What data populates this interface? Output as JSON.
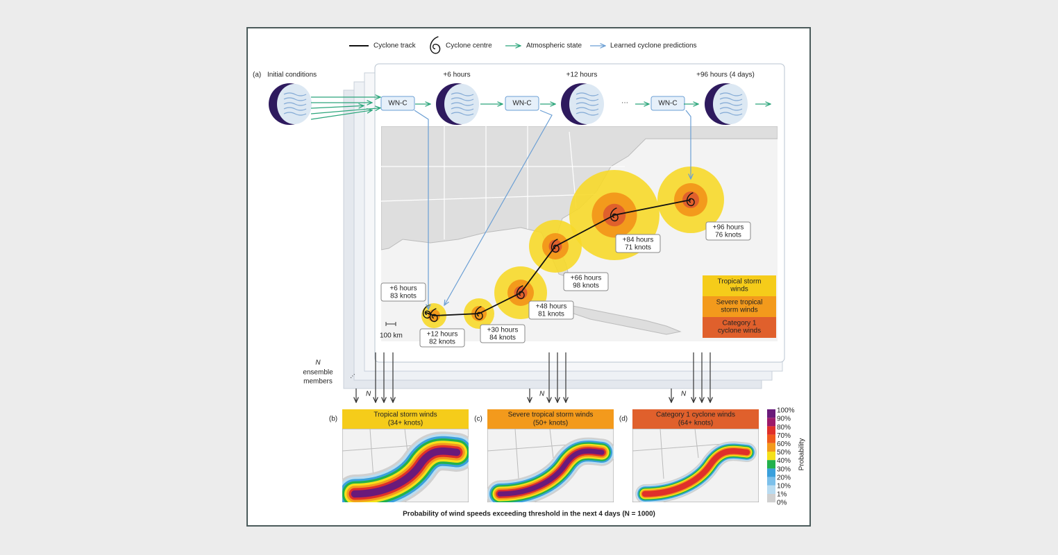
{
  "legend": {
    "track": "Cyclone track",
    "centre": "Cyclone centre",
    "state": "Atmospheric state",
    "predictions": "Learned cyclone predictions"
  },
  "panel_a": {
    "label": "(a)",
    "initial": "Initial conditions",
    "steps": [
      "+6 hours",
      "+12 hours",
      "+96 hours (4 days)"
    ],
    "models": [
      "WN-C",
      "WN-C",
      "WN-C"
    ],
    "ellipsis": "···",
    "track_labels": [
      {
        "time": "+6 hours",
        "speed": "83 knots"
      },
      {
        "time": "+12 hours",
        "speed": "82 knots"
      },
      {
        "time": "+30 hours",
        "speed": "84 knots"
      },
      {
        "time": "+48 hours",
        "speed": "81 knots"
      },
      {
        "time": "+66 hours",
        "speed": "98 knots"
      },
      {
        "time": "+84 hours",
        "speed": "71 knots"
      },
      {
        "time": "+96 hours",
        "speed": "76 knots"
      }
    ],
    "scale": "100 km",
    "wind_legend": [
      [
        "Tropical storm",
        "winds"
      ],
      [
        "Severe tropical",
        "storm winds"
      ],
      [
        "Category 1",
        "cyclone winds"
      ]
    ],
    "ensemble": [
      "N",
      "ensemble",
      "members"
    ],
    "n_marks": [
      "N",
      "N",
      "N"
    ]
  },
  "panels": [
    {
      "label": "(b)",
      "title": "Tropical storm winds",
      "threshold": "(34+ knots)"
    },
    {
      "label": "(c)",
      "title": "Severe tropical storm winds",
      "threshold": "(50+ knots)"
    },
    {
      "label": "(d)",
      "title": "Category 1 cyclone winds",
      "threshold": "(64+ knots)"
    }
  ],
  "colorbar": {
    "ticks": [
      "100%",
      "90%",
      "80%",
      "70%",
      "60%",
      "50%",
      "40%",
      "30%",
      "20%",
      "10%",
      "1%",
      "0%"
    ],
    "title": "Probability"
  },
  "caption": "Probability of wind speeds exceeding threshold in the next 4 days (N = 1000)"
}
